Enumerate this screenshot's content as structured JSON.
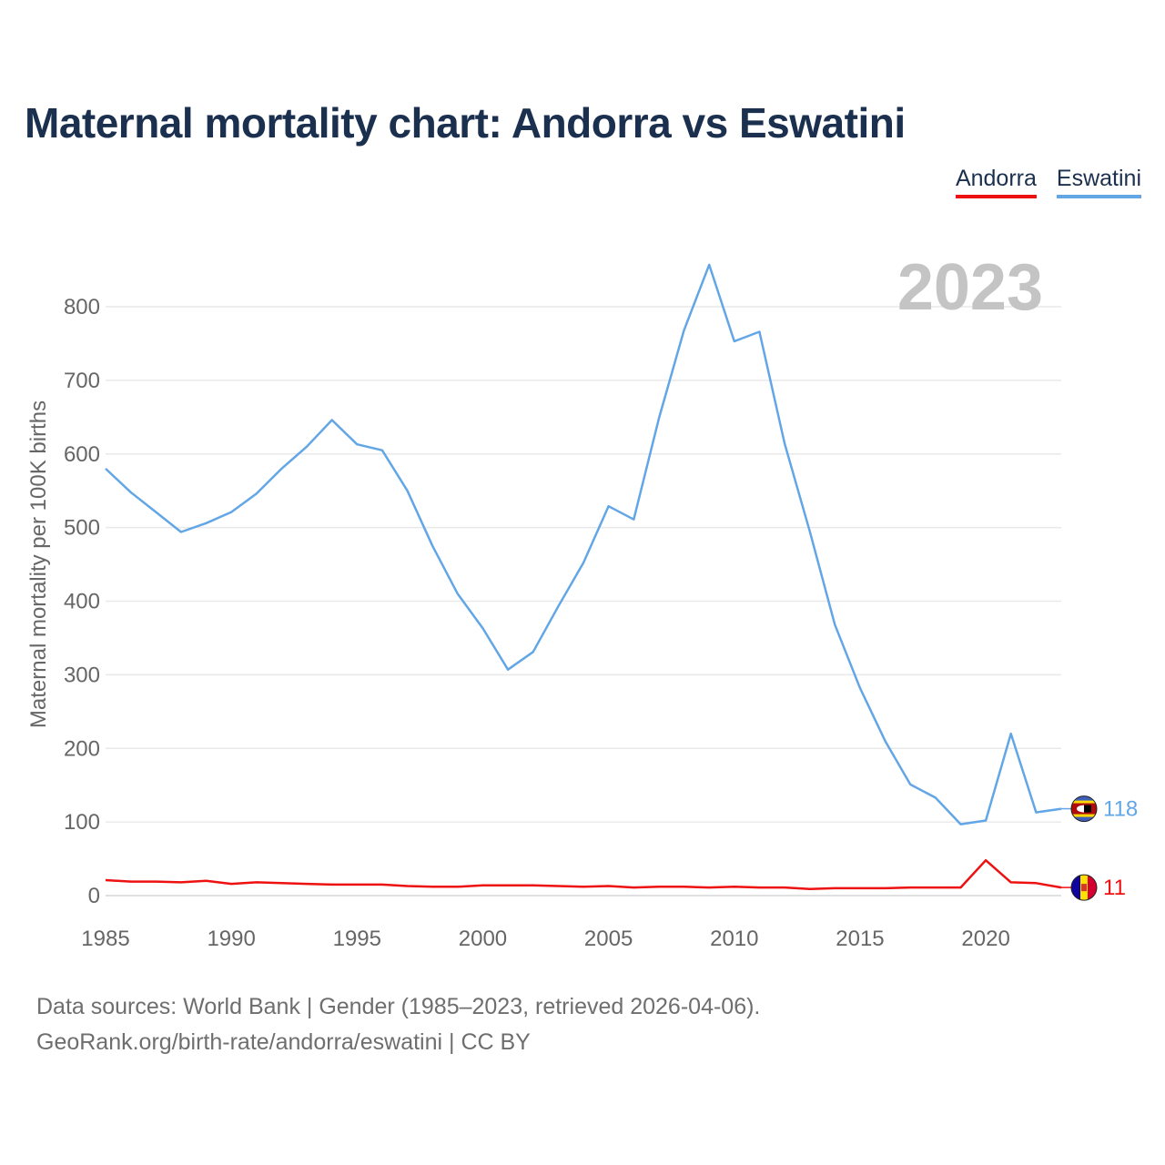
{
  "title": "Maternal mortality chart: Andorra vs Eswatini",
  "legend": [
    {
      "name": "Andorra",
      "color": "#ee1111"
    },
    {
      "name": "Eswatini",
      "color": "#63a6e6"
    }
  ],
  "source_line1": "Data sources: World Bank | Gender (1985–2023, retrieved 2026-04-06).",
  "source_line2": "GeoRank.org/birth-rate/andorra/eswatini | CC BY",
  "chart_data": {
    "type": "line",
    "title": "Maternal mortality chart: Andorra vs Eswatini",
    "year_label": "2023",
    "xlabel": "",
    "ylabel": "Maternal mortality per 100K births",
    "xlim": [
      1985,
      2023
    ],
    "ylim": [
      0,
      800
    ],
    "xticks": [
      1985,
      1990,
      1995,
      2000,
      2005,
      2010,
      2015,
      2020
    ],
    "yticks": [
      0,
      100,
      200,
      300,
      400,
      500,
      600,
      700,
      800
    ],
    "grid": true,
    "x": [
      1985,
      1986,
      1987,
      1988,
      1989,
      1990,
      1991,
      1992,
      1993,
      1994,
      1995,
      1996,
      1997,
      1998,
      1999,
      2000,
      2001,
      2002,
      2003,
      2004,
      2005,
      2006,
      2007,
      2008,
      2009,
      2010,
      2011,
      2012,
      2013,
      2014,
      2015,
      2016,
      2017,
      2018,
      2019,
      2020,
      2021,
      2022,
      2023
    ],
    "series": [
      {
        "name": "Andorra",
        "color": "#ee1111",
        "end_label": "11",
        "flag": "andorra-flag",
        "values": [
          21,
          19,
          19,
          18,
          20,
          16,
          18,
          17,
          16,
          15,
          15,
          15,
          13,
          12,
          12,
          14,
          14,
          14,
          13,
          12,
          13,
          11,
          12,
          12,
          11,
          12,
          11,
          11,
          9,
          10,
          10,
          10,
          11,
          11,
          11,
          48,
          18,
          17,
          11
        ]
      },
      {
        "name": "Eswatini",
        "color": "#63a6e6",
        "end_label": "118",
        "flag": "eswatini-flag",
        "values": [
          580,
          548,
          521,
          494,
          506,
          521,
          546,
          580,
          610,
          646,
          613,
          605,
          550,
          475,
          410,
          363,
          307,
          331,
          393,
          452,
          529,
          511,
          648,
          768,
          857,
          753,
          766,
          614,
          495,
          368,
          282,
          210,
          151,
          133,
          97,
          102,
          220,
          113,
          118
        ]
      }
    ]
  }
}
